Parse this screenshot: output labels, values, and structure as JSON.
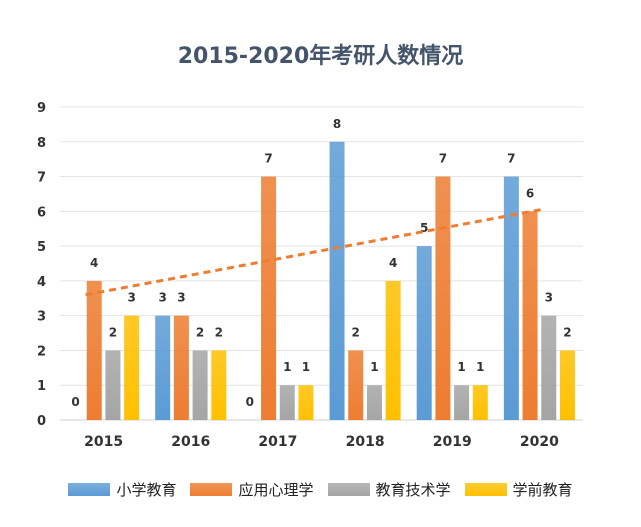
{
  "chart_data": {
    "type": "bar",
    "title": "2015-2020年考研人数情况",
    "categories": [
      "2015",
      "2016",
      "2017",
      "2018",
      "2019",
      "2020"
    ],
    "series": [
      {
        "name": "小学教育",
        "values": [
          0,
          3,
          0,
          8,
          5,
          7
        ],
        "color": "#5B9BD5"
      },
      {
        "name": "应用心理学",
        "values": [
          4,
          3,
          7,
          2,
          7,
          6
        ],
        "color": "#ED7D31"
      },
      {
        "name": "教育技术学",
        "values": [
          2,
          2,
          1,
          1,
          1,
          3
        ],
        "color": "#A5A5A5"
      },
      {
        "name": "学前教育",
        "values": [
          3,
          2,
          1,
          4,
          1,
          2
        ],
        "color": "#FFC000"
      }
    ],
    "trendline": {
      "series": "小学教育",
      "style": "dashed",
      "color": "#ED7D31",
      "start": 3.6,
      "end": 6.05
    },
    "ylim": [
      0,
      9
    ],
    "yticks": [
      0,
      1,
      2,
      3,
      4,
      5,
      6,
      7,
      8,
      9
    ],
    "grid": true,
    "legend_position": "bottom",
    "data_labels": true
  }
}
